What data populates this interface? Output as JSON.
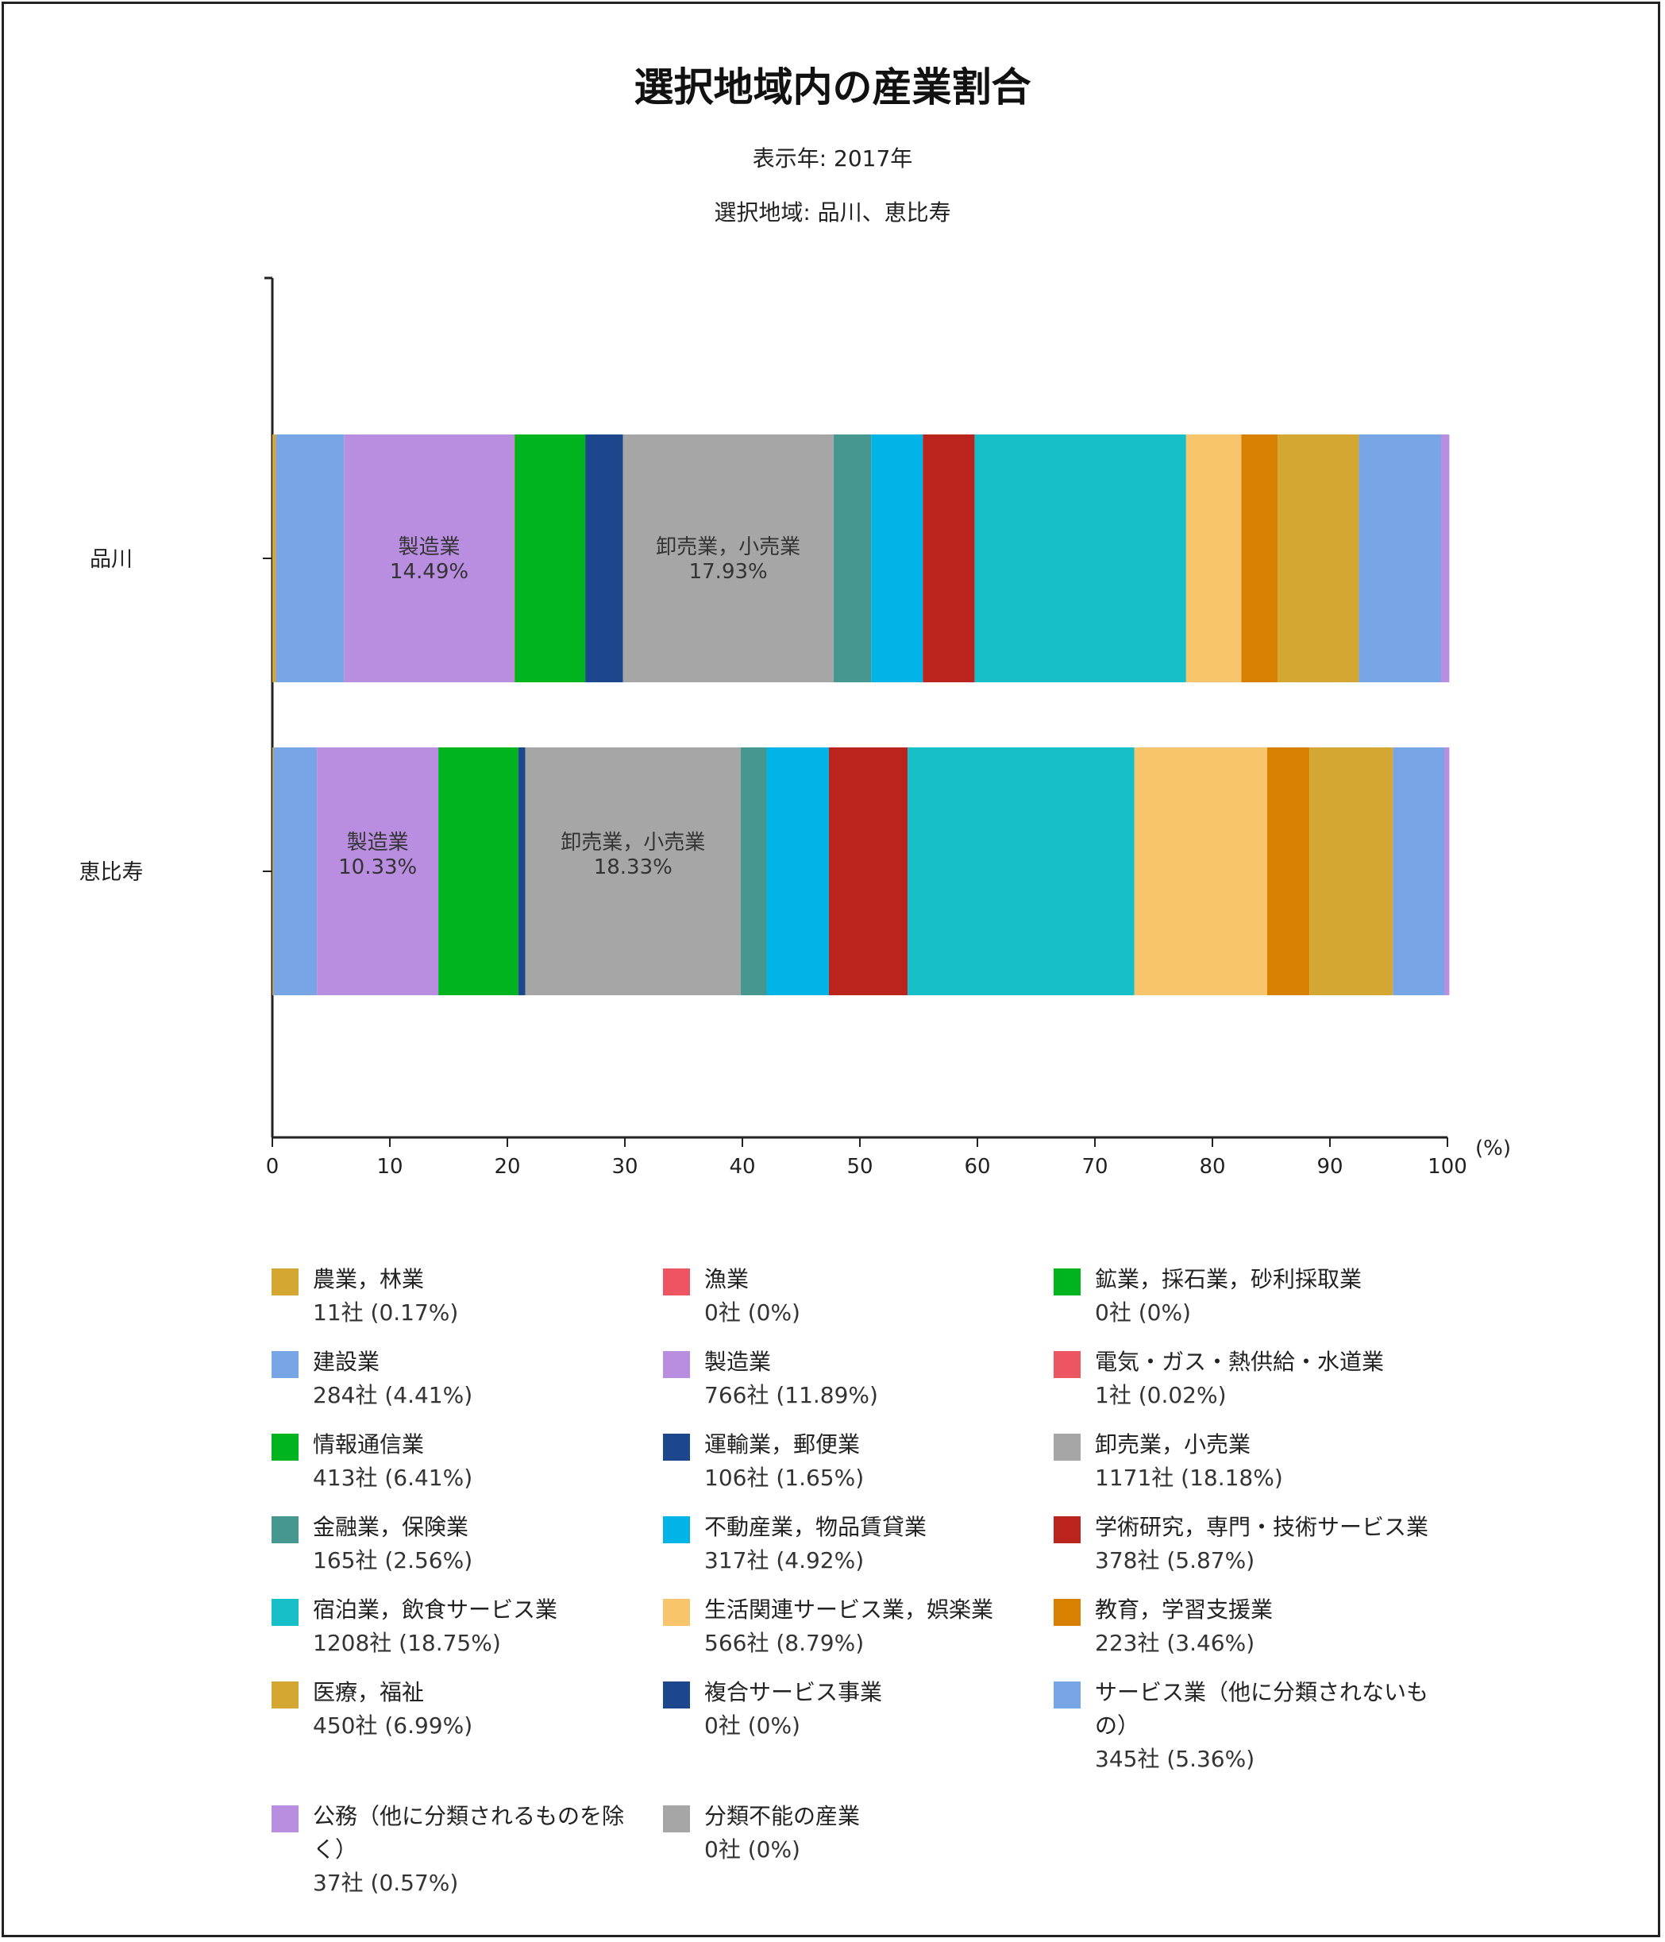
{
  "chart_data": {
    "type": "bar",
    "orientation": "horizontal",
    "stacked": true,
    "title": "選択地域内の産業割合",
    "subtitles": [
      "表示年: 2017年",
      "選択地域: 品川、恵比寿"
    ],
    "x_unit": "(%)",
    "xlim": [
      0,
      100
    ],
    "x_ticks": [
      "0",
      "10",
      "20",
      "30",
      "40",
      "50",
      "60",
      "70",
      "80",
      "90",
      "100"
    ],
    "categories": [
      "品川",
      "恵比寿"
    ],
    "series": [
      {
        "name": "農業，林業",
        "color": "#D4A733",
        "values": [
          0.3,
          0.1
        ]
      },
      {
        "name": "漁業",
        "color": "#EE5563",
        "values": [
          0,
          0
        ]
      },
      {
        "name": "鉱業，採石業，砂利採取業",
        "color": "#00B420",
        "values": [
          0,
          0
        ]
      },
      {
        "name": "建設業",
        "color": "#78A5E6",
        "values": [
          5.8,
          3.7
        ]
      },
      {
        "name": "製造業",
        "color": "#B98EE0",
        "values": [
          14.49,
          10.33
        ]
      },
      {
        "name": "電気・ガス・熱供給・水道業",
        "color": "#EE5563",
        "values": [
          0.04,
          0
        ]
      },
      {
        "name": "情報通信業",
        "color": "#00B420",
        "values": [
          6.0,
          6.8
        ]
      },
      {
        "name": "運輸業，郵便業",
        "color": "#1C478C",
        "values": [
          3.2,
          0.6
        ]
      },
      {
        "name": "卸売業，小売業",
        "color": "#A6A6A6",
        "values": [
          17.93,
          18.33
        ]
      },
      {
        "name": "金融業，保険業",
        "color": "#45978F",
        "values": [
          3.2,
          2.2
        ]
      },
      {
        "name": "不動産業，物品賃貸業",
        "color": "#00B4E8",
        "values": [
          4.4,
          5.3
        ]
      },
      {
        "name": "学術研究，専門・技術サービス業",
        "color": "#BB241D",
        "values": [
          4.4,
          6.7
        ]
      },
      {
        "name": "宿泊業，飲食サービス業",
        "color": "#17BFC8",
        "values": [
          18.0,
          19.3
        ]
      },
      {
        "name": "生活関連サービス業，娯楽業",
        "color": "#F8C56D",
        "values": [
          4.7,
          11.3
        ]
      },
      {
        "name": "教育，学習支援業",
        "color": "#D88000",
        "values": [
          3.1,
          3.6
        ]
      },
      {
        "name": "医療，福祉",
        "color": "#D4A733",
        "values": [
          6.9,
          7.1
        ]
      },
      {
        "name": "複合サービス事業",
        "color": "#1C478C",
        "values": [
          0,
          0
        ]
      },
      {
        "name": "サービス業（他に分類されないもの）",
        "color": "#78A5E6",
        "values": [
          7.0,
          4.4
        ]
      },
      {
        "name": "公務（他に分類されるものを除く）",
        "color": "#B98EE0",
        "values": [
          0.7,
          0.4
        ]
      },
      {
        "name": "分類不能の産業",
        "color": "#A6A6A6",
        "values": [
          0,
          0
        ]
      }
    ],
    "bar_labels": [
      {
        "category": "品川",
        "series": "製造業",
        "line1": "製造業",
        "line2": "14.49%"
      },
      {
        "category": "品川",
        "series": "卸売業，小売業",
        "line1": "卸売業，小売業",
        "line2": "17.93%"
      },
      {
        "category": "恵比寿",
        "series": "製造業",
        "line1": "製造業",
        "line2": "10.33%"
      },
      {
        "category": "恵比寿",
        "series": "卸売業，小売業",
        "line1": "卸売業，小売業",
        "line2": "18.33%"
      }
    ]
  },
  "legend": [
    {
      "label": "農業，林業",
      "value": "11社 (0.17%)",
      "color": "#D4A733"
    },
    {
      "label": "漁業",
      "value": "0社 (0%)",
      "color": "#EE5563"
    },
    {
      "label": "鉱業，採石業，砂利採取業",
      "value": "0社 (0%)",
      "color": "#00B420"
    },
    {
      "label": "建設業",
      "value": "284社 (4.41%)",
      "color": "#78A5E6"
    },
    {
      "label": "製造業",
      "value": "766社 (11.89%)",
      "color": "#B98EE0"
    },
    {
      "label": "電気・ガス・熱供給・水道業",
      "value": "1社 (0.02%)",
      "color": "#EE5563"
    },
    {
      "label": "情報通信業",
      "value": "413社 (6.41%)",
      "color": "#00B420"
    },
    {
      "label": "運輸業，郵便業",
      "value": "106社 (1.65%)",
      "color": "#1C478C"
    },
    {
      "label": "卸売業，小売業",
      "value": "1171社 (18.18%)",
      "color": "#A6A6A6"
    },
    {
      "label": "金融業，保険業",
      "value": "165社 (2.56%)",
      "color": "#45978F"
    },
    {
      "label": "不動産業，物品賃貸業",
      "value": "317社 (4.92%)",
      "color": "#00B4E8"
    },
    {
      "label": "学術研究，専門・技術サービス業",
      "value": "378社 (5.87%)",
      "color": "#BB241D"
    },
    {
      "label": "宿泊業，飲食サービス業",
      "value": "1208社 (18.75%)",
      "color": "#17BFC8"
    },
    {
      "label": "生活関連サービス業，娯楽業",
      "value": "566社 (8.79%)",
      "color": "#F8C56D"
    },
    {
      "label": "教育，学習支援業",
      "value": "223社 (3.46%)",
      "color": "#D88000"
    },
    {
      "label": "医療，福祉",
      "value": "450社 (6.99%)",
      "color": "#D4A733"
    },
    {
      "label": "複合サービス事業",
      "value": "0社 (0%)",
      "color": "#1C478C"
    },
    {
      "label": "サービス業（他に分類されないもの）",
      "value": "345社 (5.36%)",
      "color": "#78A5E6"
    },
    {
      "label": "公務（他に分類されるものを除く）",
      "value": "37社 (0.57%)",
      "color": "#B98EE0"
    },
    {
      "label": "分類不能の産業",
      "value": "0社 (0%)",
      "color": "#A6A6A6"
    }
  ]
}
